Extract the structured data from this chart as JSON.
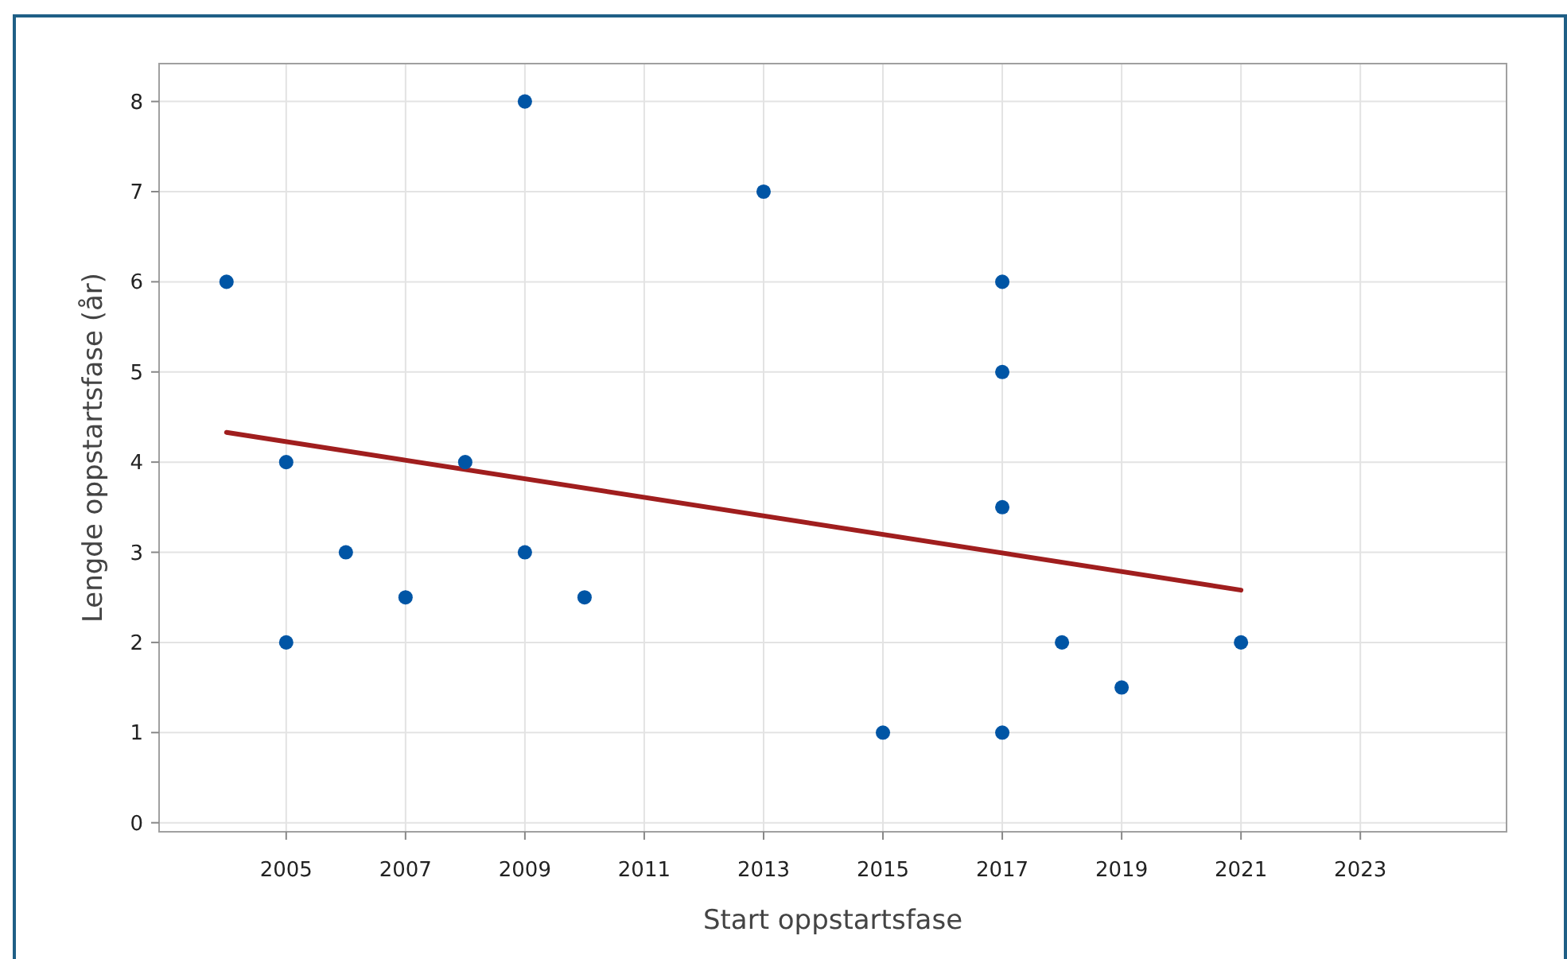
{
  "chart_data": {
    "type": "scatter",
    "xlabel": "Start oppstartsfase",
    "ylabel": "Lengde oppstartsfase (år)",
    "xlim": [
      2002.87,
      2025.45
    ],
    "ylim": [
      -0.1,
      8.42
    ],
    "xticks": [
      2005,
      2007,
      2009,
      2011,
      2013,
      2015,
      2017,
      2019,
      2021,
      2023
    ],
    "yticks": [
      0,
      1,
      2,
      3,
      4,
      5,
      6,
      7,
      8
    ],
    "grid": true,
    "series": [
      {
        "marker": "circle",
        "color": "#0055a5",
        "x": [
          2004,
          2005,
          2005,
          2006,
          2007,
          2008,
          2009,
          2009,
          2010,
          2013,
          2015,
          2017,
          2017,
          2017,
          2017,
          2018,
          2019,
          2021
        ],
        "values": [
          6,
          4,
          2,
          3,
          2.5,
          4,
          8,
          3,
          2.5,
          7,
          1,
          6,
          5,
          3.5,
          1,
          2,
          1.5,
          2
        ]
      },
      {
        "type": "line",
        "color": "#a01e1e",
        "line_style": "solid",
        "x": [
          2004,
          2021
        ],
        "values": [
          4.33,
          2.58
        ]
      }
    ]
  }
}
